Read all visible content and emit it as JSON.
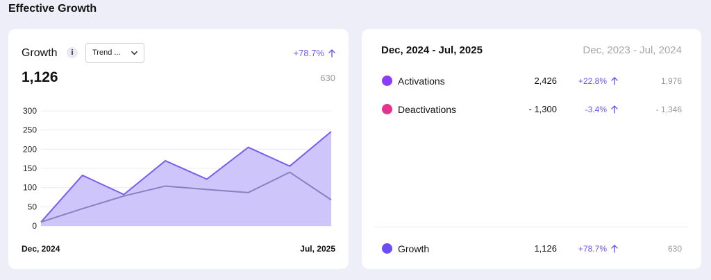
{
  "page_title": "Effective Growth",
  "left_card": {
    "label": "Growth",
    "info_icon": "i",
    "dropdown_value": "Trend ...",
    "change_pct": "+78.7%",
    "current_value": "1,126",
    "previous_value": "630",
    "x_start": "Dec, 2024",
    "x_end": "Jul, 2025"
  },
  "right_card": {
    "current_range": "Dec, 2024 - Jul, 2025",
    "previous_range": "Dec, 2023 - Jul, 2024",
    "rows": [
      {
        "name": "Activations",
        "value": "2,426",
        "pct": "+22.8%",
        "prev": "1,976",
        "color": "#8b3cf6"
      },
      {
        "name": "Deactivations",
        "value": "- 1,300",
        "pct": "-3.4%",
        "prev": "- 1,346",
        "color": "#e5318f"
      }
    ],
    "total": {
      "name": "Growth",
      "value": "1,126",
      "pct": "+78.7%",
      "prev": "630",
      "color": "#6b4df5"
    }
  },
  "colors": {
    "accent": "#6c55f0",
    "area_fill": "#cec6fb",
    "current_line": "#7a5cf0",
    "previous_line": "#8a80c0"
  },
  "chart_data": {
    "type": "area",
    "ylim": [
      0,
      300
    ],
    "yticks": [
      "0",
      "50",
      "100",
      "150",
      "200",
      "250",
      "300"
    ],
    "series": [
      {
        "values": [
          10,
          132,
          82,
          170,
          122,
          205,
          156,
          246
        ]
      },
      {
        "values": [
          10,
          45,
          78,
          104,
          95,
          87,
          140,
          68
        ]
      }
    ]
  }
}
